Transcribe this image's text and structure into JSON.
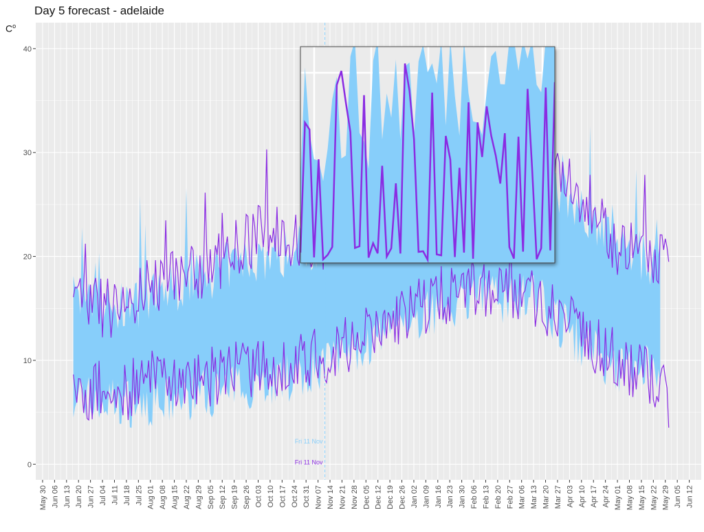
{
  "chart_data": {
    "type": "line",
    "title": "Day 5 forecast - adelaide",
    "ylabel": "C",
    "ylabel_superscript": "o",
    "xlabel": "",
    "ylim": [
      -1.5,
      42.5
    ],
    "xlim": [
      "2022-05-26",
      "2023-06-19"
    ],
    "yticks": [
      0,
      10,
      20,
      30,
      40
    ],
    "xticks": [
      "May 30",
      "Jun 06",
      "Jun 13",
      "Jun 20",
      "Jun 27",
      "Jul 04",
      "Jul 11",
      "Jul 18",
      "Jul 25",
      "Aug 01",
      "Aug 08",
      "Aug 15",
      "Aug 22",
      "Aug 29",
      "Sep 05",
      "Sep 12",
      "Sep 19",
      "Sep 26",
      "Oct 03",
      "Oct 10",
      "Oct 17",
      "Oct 24",
      "Oct 31",
      "Nov 07",
      "Nov 14",
      "Nov 21",
      "Nov 28",
      "Dec 05",
      "Dec 12",
      "Dec 19",
      "Dec 26",
      "Jan 02",
      "Jan 09",
      "Jan 16",
      "Jan 23",
      "Jan 30",
      "Feb 06",
      "Feb 13",
      "Feb 20",
      "Feb 27",
      "Mar 06",
      "Mar 13",
      "Mar 20",
      "Mar 27",
      "Apr 03",
      "Apr 10",
      "Apr 17",
      "Apr 24",
      "May 01",
      "May 08",
      "May 15",
      "May 22",
      "May 29",
      "Jun 05",
      "Jun 12"
    ],
    "xtick_dates_start": "2022-05-30",
    "grid": true,
    "legend": "none",
    "vline": {
      "date": "2022-11-11",
      "labels": [
        "Fri 11 Nov",
        "Fri 11 Nov"
      ]
    },
    "colors": {
      "band": "#87CEFA",
      "line": "#8A2BE2",
      "panel": "#EBEBEB",
      "grid": "#FFFFFF"
    },
    "series": [
      {
        "kind": "band",
        "x_start": "2022-06-17",
        "x_end": "2023-05-26",
        "keypoints_low": [
          [
            "2022-06-17",
            7
          ],
          [
            "2022-07-01",
            6
          ],
          [
            "2022-07-15",
            6
          ],
          [
            "2022-08-01",
            6
          ],
          [
            "2022-08-15",
            6
          ],
          [
            "2022-09-01",
            7
          ],
          [
            "2022-09-15",
            7
          ],
          [
            "2022-10-01",
            8
          ],
          [
            "2022-10-15",
            8
          ],
          [
            "2022-11-01",
            9
          ],
          [
            "2022-11-15",
            10
          ],
          [
            "2022-12-01",
            11
          ],
          [
            "2022-12-15",
            12
          ],
          [
            "2023-01-01",
            14
          ],
          [
            "2023-01-15",
            15
          ],
          [
            "2023-02-01",
            16
          ],
          [
            "2023-02-15",
            16
          ],
          [
            "2023-03-01",
            16
          ],
          [
            "2023-03-15",
            16
          ],
          [
            "2023-04-01",
            13
          ],
          [
            "2023-04-15",
            11
          ],
          [
            "2023-05-01",
            9
          ],
          [
            "2023-05-15",
            9
          ],
          [
            "2023-05-26",
            10
          ]
        ],
        "keypoints_high": [
          [
            "2022-06-17",
            16
          ],
          [
            "2022-07-01",
            15
          ],
          [
            "2022-07-15",
            15
          ],
          [
            "2022-08-01",
            16
          ],
          [
            "2022-08-15",
            17
          ],
          [
            "2022-09-01",
            18
          ],
          [
            "2022-09-15",
            19
          ],
          [
            "2022-10-01",
            20
          ],
          [
            "2022-10-15",
            20
          ],
          [
            "2022-11-01",
            21
          ],
          [
            "2022-11-15",
            22
          ],
          [
            "2022-12-01",
            23
          ],
          [
            "2022-12-15",
            25
          ],
          [
            "2023-01-01",
            27
          ],
          [
            "2023-01-15",
            29
          ],
          [
            "2023-02-01",
            31
          ],
          [
            "2023-02-15",
            30
          ],
          [
            "2023-03-01",
            29
          ],
          [
            "2023-03-15",
            27
          ],
          [
            "2023-04-01",
            26
          ],
          [
            "2023-04-15",
            24
          ],
          [
            "2023-05-01",
            21
          ],
          [
            "2023-05-15",
            20
          ],
          [
            "2023-05-26",
            19
          ]
        ]
      },
      {
        "kind": "line",
        "x_start": "2022-06-17",
        "x_end": "2023-05-31",
        "keypoints_low": [
          [
            "2022-06-17",
            7
          ],
          [
            "2022-07-01",
            7
          ],
          [
            "2022-07-15",
            7
          ],
          [
            "2022-08-01",
            8
          ],
          [
            "2022-08-15",
            8
          ],
          [
            "2022-09-01",
            8
          ],
          [
            "2022-09-15",
            9
          ],
          [
            "2022-10-01",
            9
          ],
          [
            "2022-10-15",
            9
          ],
          [
            "2022-11-01",
            10
          ],
          [
            "2022-11-15",
            11
          ],
          [
            "2022-12-01",
            12
          ],
          [
            "2022-12-15",
            13
          ],
          [
            "2023-01-01",
            15
          ],
          [
            "2023-01-15",
            16
          ],
          [
            "2023-02-01",
            17
          ],
          [
            "2023-02-15",
            17
          ],
          [
            "2023-03-01",
            17
          ],
          [
            "2023-03-15",
            16
          ],
          [
            "2023-04-01",
            14
          ],
          [
            "2023-04-15",
            12
          ],
          [
            "2023-05-01",
            10
          ],
          [
            "2023-05-15",
            9
          ],
          [
            "2023-05-31",
            6
          ]
        ],
        "keypoints_high": [
          [
            "2022-06-17",
            16
          ],
          [
            "2022-07-01",
            15
          ],
          [
            "2022-07-15",
            15
          ],
          [
            "2022-08-01",
            17
          ],
          [
            "2022-08-15",
            18
          ],
          [
            "2022-09-01",
            19
          ],
          [
            "2022-09-15",
            20
          ],
          [
            "2022-10-01",
            22
          ],
          [
            "2022-10-15",
            22
          ],
          [
            "2022-11-01",
            21
          ],
          [
            "2022-11-15",
            22
          ],
          [
            "2022-12-01",
            23
          ],
          [
            "2022-12-15",
            26
          ],
          [
            "2023-01-01",
            30
          ],
          [
            "2023-01-15",
            32
          ],
          [
            "2023-02-01",
            33
          ],
          [
            "2023-02-15",
            32
          ],
          [
            "2023-03-01",
            31
          ],
          [
            "2023-03-15",
            29
          ],
          [
            "2023-04-01",
            27
          ],
          [
            "2023-04-15",
            25
          ],
          [
            "2023-05-01",
            21
          ],
          [
            "2023-05-15",
            20
          ],
          [
            "2023-05-31",
            19
          ]
        ]
      }
    ]
  }
}
